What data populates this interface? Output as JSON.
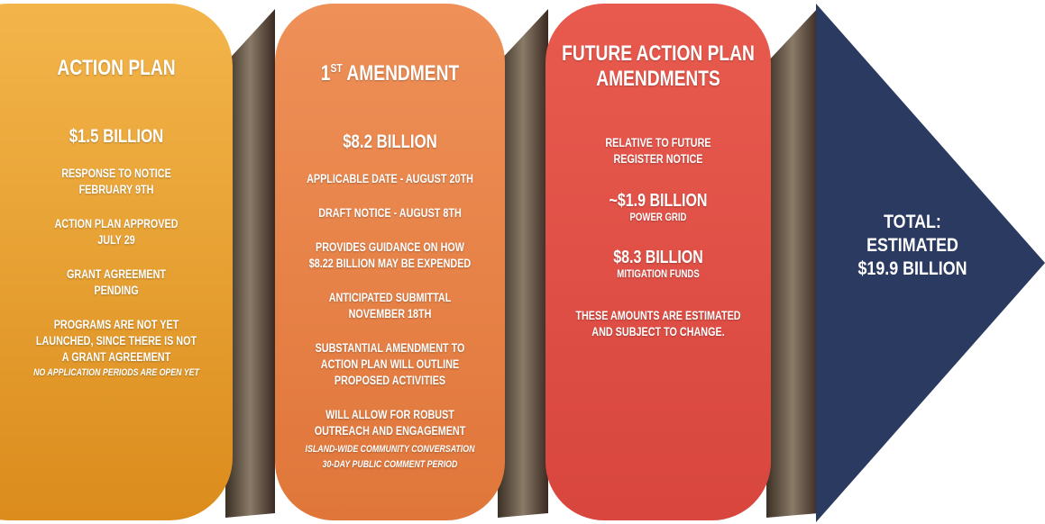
{
  "panels": [
    {
      "title": [
        "ACTION PLAN"
      ],
      "amount": "$1.5 BILLION",
      "items": [
        {
          "lines": [
            "RESPONSE TO NOTICE",
            "FEBRUARY 9TH"
          ]
        },
        {
          "lines": [
            "ACTION PLAN APPROVED",
            "JULY 29"
          ]
        },
        {
          "lines": [
            "GRANT AGREEMENT",
            "PENDING"
          ]
        },
        {
          "lines": [
            "PROGRAMS ARE NOT YET",
            "LAUNCHED, SINCE THERE IS NOT",
            "A GRANT AGREEMENT"
          ],
          "notes": [
            "NO APPLICATION PERIODS ARE OPEN YET"
          ]
        }
      ]
    },
    {
      "title_prefix": "1",
      "title_sup": "ST",
      "title": [
        "AMENDMENT"
      ],
      "amount": "$8.2 BILLION",
      "items": [
        {
          "lines": [
            "APPLICABLE DATE - AUGUST 20TH"
          ]
        },
        {
          "lines": [
            "DRAFT NOTICE - AUGUST 8TH"
          ]
        },
        {
          "lines": [
            "PROVIDES GUIDANCE ON HOW",
            "$8.22 BILLION MAY BE EXPENDED"
          ]
        },
        {
          "lines": [
            "ANTICIPATED SUBMITTAL",
            "NOVEMBER 18TH"
          ]
        },
        {
          "lines": [
            "SUBSTANTIAL AMENDMENT TO",
            "ACTION PLAN WILL OUTLINE",
            "PROPOSED ACTIVITIES"
          ]
        },
        {
          "lines": [
            "WILL ALLOW FOR ROBUST",
            "OUTREACH AND ENGAGEMENT"
          ],
          "notes": [
            "ISLAND-WIDE COMMUNITY CONVERSATION",
            "30-DAY PUBLIC COMMENT PERIOD"
          ]
        }
      ]
    },
    {
      "title": [
        "FUTURE ACTION PLAN",
        "AMENDMENTS"
      ],
      "items": [
        {
          "lines": [
            "RELATIVE TO FUTURE",
            "REGISTER NOTICE"
          ]
        },
        {
          "amount": "~$1.9 BILLION",
          "lines": [
            "POWER GRID"
          ]
        },
        {
          "amount": "$8.3 BILLION",
          "lines": [
            "MITIGATION FUNDS"
          ]
        },
        {
          "lines": [
            "THESE AMOUNTS ARE ESTIMATED",
            "AND SUBJECT TO CHANGE."
          ]
        }
      ]
    }
  ],
  "total": {
    "lines": [
      "TOTAL:",
      "ESTIMATED",
      "$19.9 BILLION"
    ]
  }
}
